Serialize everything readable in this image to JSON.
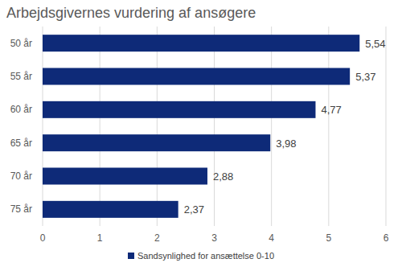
{
  "chart_data": {
    "type": "bar",
    "title": "Arbejdsgivernes vurdering af ansøgere",
    "orientation": "horizontal",
    "categories": [
      "50 år",
      "55 år",
      "60 år",
      "65 år",
      "70 år",
      "75 år"
    ],
    "series": [
      {
        "name": "Sandsynlighed for ansættelse 0-10",
        "color": "#0e2a78",
        "values": [
          5.54,
          5.37,
          4.77,
          3.98,
          2.88,
          2.37
        ],
        "value_labels": [
          "5,54",
          "5,37",
          "4,77",
          "3,98",
          "2,88",
          "2,37"
        ]
      }
    ],
    "xlim": [
      0,
      6
    ],
    "xticks": [
      0,
      1,
      2,
      3,
      4,
      5,
      6
    ],
    "grid": true,
    "legend": "bottom",
    "data_labels": true
  }
}
